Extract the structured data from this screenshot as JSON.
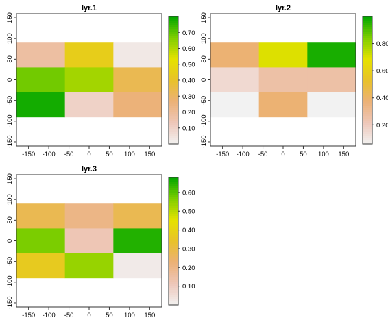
{
  "chart_data": [
    {
      "type": "heatmap",
      "title": "lyr.1",
      "x_ticks": [
        -150,
        -100,
        -50,
        0,
        50,
        100,
        150
      ],
      "y_ticks": [
        -150,
        -100,
        -50,
        0,
        50,
        100,
        150
      ],
      "xlim": [
        -180,
        180
      ],
      "ylim": [
        -160,
        160
      ],
      "raster_extent": {
        "xmin": -180,
        "xmax": 180,
        "ymin": -90,
        "ymax": 90
      },
      "rows": 4,
      "cols": 3,
      "values": [
        [
          0.18,
          0.45,
          0.03
        ],
        [
          0.68,
          0.62,
          0.33
        ],
        [
          0.78,
          0.1,
          0.26
        ],
        [
          null,
          null,
          null
        ]
      ],
      "legend": {
        "min": 0.0,
        "max": 0.8,
        "ticks": [
          0.1,
          0.2,
          0.3,
          0.4,
          0.5,
          0.6,
          0.7
        ]
      }
    },
    {
      "type": "heatmap",
      "title": "lyr.2",
      "x_ticks": [
        -150,
        -100,
        -50,
        0,
        50,
        100,
        150
      ],
      "y_ticks": [
        -150,
        -100,
        -50,
        0,
        50,
        100,
        150
      ],
      "xlim": [
        -180,
        180
      ],
      "ylim": [
        -160,
        160
      ],
      "raster_extent": {
        "xmin": -180,
        "xmax": 180,
        "ymin": -90,
        "ymax": 90
      },
      "rows": 4,
      "cols": 3,
      "values": [
        [
          0.38,
          0.7,
          0.97
        ],
        [
          0.15,
          0.26,
          0.26
        ],
        [
          0.03,
          0.38,
          0.06
        ],
        [
          null,
          null,
          null
        ]
      ],
      "legend": {
        "min": 0.06,
        "max": 1.0,
        "ticks": [
          0.2,
          0.4,
          0.6,
          0.8
        ]
      }
    },
    {
      "type": "heatmap",
      "title": "lyr.3",
      "x_ticks": [
        -150,
        -100,
        -50,
        0,
        50,
        100,
        150
      ],
      "y_ticks": [
        -150,
        -100,
        -50,
        0,
        50,
        100,
        150
      ],
      "xlim": [
        -180,
        180
      ],
      "ylim": [
        -160,
        160
      ],
      "raster_extent": {
        "xmin": -180,
        "xmax": 180,
        "ymin": -90,
        "ymax": 90
      },
      "rows": 4,
      "cols": 3,
      "values": [
        [
          0.28,
          0.2,
          0.28
        ],
        [
          0.57,
          0.12,
          0.65
        ],
        [
          0.37,
          0.54,
          0.02
        ],
        [
          null,
          null,
          null
        ]
      ],
      "legend": {
        "min": 0.0,
        "max": 0.68,
        "ticks": [
          0.1,
          0.2,
          0.3,
          0.4,
          0.5,
          0.6
        ]
      }
    }
  ],
  "palette": {
    "stops": [
      "#f2f2f2",
      "#eec7b9",
      "#ecb176",
      "#e8c12a",
      "#e6e200",
      "#7fce00",
      "#00a600"
    ],
    "na_color": "#ffffff",
    "frame_color": "#333333"
  }
}
